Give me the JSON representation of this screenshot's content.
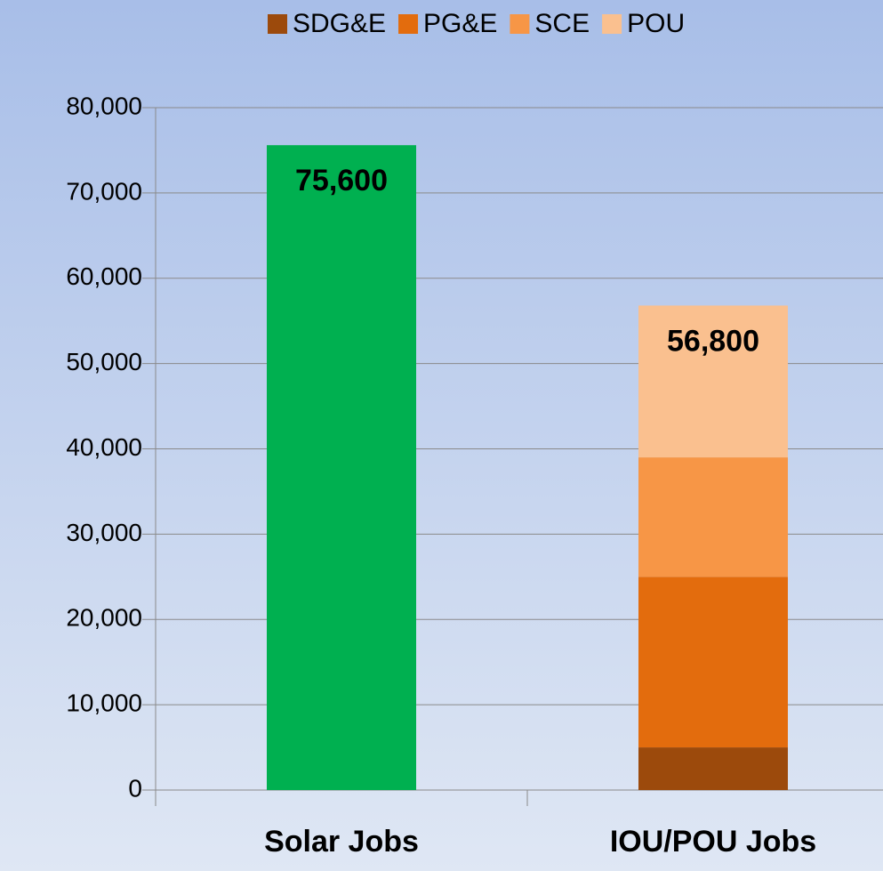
{
  "chart_data": {
    "type": "stacked_bar",
    "categories": [
      "Solar Jobs",
      "IOU/POU Jobs"
    ],
    "series": [
      {
        "color": "#00b050",
        "values": [
          75600,
          null
        ]
      },
      {
        "name": "SDG&E",
        "color": "#9c4a0c",
        "values": [
          null,
          5000
        ]
      },
      {
        "name": "PG&E",
        "color": "#e36c0d",
        "values": [
          null,
          20000
        ]
      },
      {
        "name": "SCE",
        "color": "#f79646",
        "values": [
          null,
          14000
        ]
      },
      {
        "name": "POU",
        "color": "#fac08f",
        "values": [
          null,
          17800
        ]
      }
    ],
    "totals": [
      75600,
      56800
    ],
    "total_labels": [
      "75,600",
      "56,800"
    ],
    "ylim": [
      0,
      80000
    ],
    "yticks": [
      0,
      {
        "value": 10000,
        "label": "10,000"
      },
      {
        "value": 20000,
        "label": "20,000"
      },
      {
        "value": 30000,
        "label": "30,000"
      },
      {
        "value": 40000,
        "label": "40,000"
      },
      {
        "value": 50000,
        "label": "50,000"
      },
      {
        "value": 60000,
        "label": "60,000"
      },
      {
        "value": 70000,
        "label": "70,000"
      },
      {
        "value": 80000,
        "label": "80,000"
      }
    ],
    "grid": true,
    "legend": "top"
  }
}
